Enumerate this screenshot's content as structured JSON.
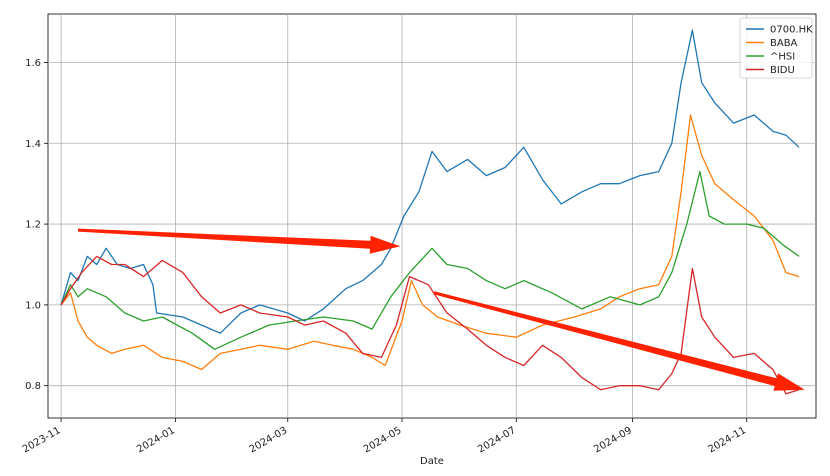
{
  "chart_data": {
    "type": "line",
    "xlabel": "Date",
    "ylabel": "",
    "x_range": [
      "2023-10-25",
      "2024-12-08"
    ],
    "ylim": [
      0.72,
      1.72
    ],
    "grid": true,
    "legend_position": "top-right",
    "x_ticks": [
      "2023-11",
      "2024-01",
      "2024-03",
      "2024-05",
      "2024-07",
      "2024-09",
      "2024-11"
    ],
    "y_ticks": [
      "0.8",
      "1.0",
      "1.2",
      "1.4",
      "1.6"
    ],
    "series": [
      {
        "name": "0700.HK",
        "color": "#1f77b4",
        "points": [
          [
            "2023-11-01",
            1.0
          ],
          [
            "2023-11-06",
            1.08
          ],
          [
            "2023-11-10",
            1.06
          ],
          [
            "2023-11-15",
            1.12
          ],
          [
            "2023-11-20",
            1.1
          ],
          [
            "2023-11-25",
            1.14
          ],
          [
            "2023-12-01",
            1.1
          ],
          [
            "2023-12-08",
            1.09
          ],
          [
            "2023-12-15",
            1.1
          ],
          [
            "2023-12-20",
            1.05
          ],
          [
            "2023-12-22",
            0.98
          ],
          [
            "2024-01-05",
            0.97
          ],
          [
            "2024-01-15",
            0.95
          ],
          [
            "2024-01-25",
            0.93
          ],
          [
            "2024-02-05",
            0.98
          ],
          [
            "2024-02-15",
            1.0
          ],
          [
            "2024-03-01",
            0.98
          ],
          [
            "2024-03-10",
            0.96
          ],
          [
            "2024-03-20",
            0.99
          ],
          [
            "2024-04-01",
            1.04
          ],
          [
            "2024-04-10",
            1.06
          ],
          [
            "2024-04-20",
            1.1
          ],
          [
            "2024-04-25",
            1.14
          ],
          [
            "2024-05-02",
            1.22
          ],
          [
            "2024-05-10",
            1.28
          ],
          [
            "2024-05-17",
            1.38
          ],
          [
            "2024-05-25",
            1.33
          ],
          [
            "2024-06-05",
            1.36
          ],
          [
            "2024-06-15",
            1.32
          ],
          [
            "2024-06-25",
            1.34
          ],
          [
            "2024-07-05",
            1.39
          ],
          [
            "2024-07-15",
            1.31
          ],
          [
            "2024-07-25",
            1.25
          ],
          [
            "2024-08-05",
            1.28
          ],
          [
            "2024-08-15",
            1.3
          ],
          [
            "2024-08-25",
            1.3
          ],
          [
            "2024-09-05",
            1.32
          ],
          [
            "2024-09-15",
            1.33
          ],
          [
            "2024-09-22",
            1.4
          ],
          [
            "2024-09-27",
            1.55
          ],
          [
            "2024-10-03",
            1.68
          ],
          [
            "2024-10-08",
            1.55
          ],
          [
            "2024-10-15",
            1.5
          ],
          [
            "2024-10-25",
            1.45
          ],
          [
            "2024-11-05",
            1.47
          ],
          [
            "2024-11-15",
            1.43
          ],
          [
            "2024-11-22",
            1.42
          ],
          [
            "2024-11-29",
            1.39
          ]
        ]
      },
      {
        "name": "BABA",
        "color": "#ff7f0e",
        "points": [
          [
            "2023-11-01",
            1.0
          ],
          [
            "2023-11-06",
            1.03
          ],
          [
            "2023-11-10",
            0.96
          ],
          [
            "2023-11-15",
            0.92
          ],
          [
            "2023-11-20",
            0.9
          ],
          [
            "2023-11-28",
            0.88
          ],
          [
            "2023-12-05",
            0.89
          ],
          [
            "2023-12-15",
            0.9
          ],
          [
            "2023-12-25",
            0.87
          ],
          [
            "2024-01-05",
            0.86
          ],
          [
            "2024-01-15",
            0.84
          ],
          [
            "2024-01-25",
            0.88
          ],
          [
            "2024-02-05",
            0.89
          ],
          [
            "2024-02-15",
            0.9
          ],
          [
            "2024-03-01",
            0.89
          ],
          [
            "2024-03-15",
            0.91
          ],
          [
            "2024-03-25",
            0.9
          ],
          [
            "2024-04-05",
            0.89
          ],
          [
            "2024-04-15",
            0.87
          ],
          [
            "2024-04-22",
            0.85
          ],
          [
            "2024-05-01",
            0.96
          ],
          [
            "2024-05-06",
            1.06
          ],
          [
            "2024-05-12",
            1.0
          ],
          [
            "2024-05-20",
            0.97
          ],
          [
            "2024-06-01",
            0.95
          ],
          [
            "2024-06-15",
            0.93
          ],
          [
            "2024-07-01",
            0.92
          ],
          [
            "2024-07-15",
            0.95
          ],
          [
            "2024-08-01",
            0.97
          ],
          [
            "2024-08-15",
            0.99
          ],
          [
            "2024-08-25",
            1.02
          ],
          [
            "2024-09-05",
            1.04
          ],
          [
            "2024-09-15",
            1.05
          ],
          [
            "2024-09-22",
            1.12
          ],
          [
            "2024-09-27",
            1.28
          ],
          [
            "2024-10-02",
            1.47
          ],
          [
            "2024-10-08",
            1.37
          ],
          [
            "2024-10-15",
            1.3
          ],
          [
            "2024-10-25",
            1.26
          ],
          [
            "2024-11-05",
            1.22
          ],
          [
            "2024-11-15",
            1.16
          ],
          [
            "2024-11-22",
            1.08
          ],
          [
            "2024-11-29",
            1.07
          ]
        ]
      },
      {
        "name": "^HSI",
        "color": "#2ca02c",
        "points": [
          [
            "2023-11-01",
            1.0
          ],
          [
            "2023-11-06",
            1.05
          ],
          [
            "2023-11-10",
            1.02
          ],
          [
            "2023-11-15",
            1.04
          ],
          [
            "2023-11-25",
            1.02
          ],
          [
            "2023-12-05",
            0.98
          ],
          [
            "2023-12-15",
            0.96
          ],
          [
            "2023-12-25",
            0.97
          ],
          [
            "2024-01-10",
            0.93
          ],
          [
            "2024-01-22",
            0.89
          ],
          [
            "2024-02-05",
            0.92
          ],
          [
            "2024-02-20",
            0.95
          ],
          [
            "2024-03-05",
            0.96
          ],
          [
            "2024-03-20",
            0.97
          ],
          [
            "2024-04-05",
            0.96
          ],
          [
            "2024-04-15",
            0.94
          ],
          [
            "2024-04-25",
            1.02
          ],
          [
            "2024-05-05",
            1.08
          ],
          [
            "2024-05-17",
            1.14
          ],
          [
            "2024-05-25",
            1.1
          ],
          [
            "2024-06-05",
            1.09
          ],
          [
            "2024-06-15",
            1.06
          ],
          [
            "2024-06-25",
            1.04
          ],
          [
            "2024-07-05",
            1.06
          ],
          [
            "2024-07-20",
            1.03
          ],
          [
            "2024-08-05",
            0.99
          ],
          [
            "2024-08-20",
            1.02
          ],
          [
            "2024-09-05",
            1.0
          ],
          [
            "2024-09-15",
            1.02
          ],
          [
            "2024-09-22",
            1.08
          ],
          [
            "2024-09-30",
            1.2
          ],
          [
            "2024-10-07",
            1.33
          ],
          [
            "2024-10-12",
            1.22
          ],
          [
            "2024-10-20",
            1.2
          ],
          [
            "2024-11-01",
            1.2
          ],
          [
            "2024-11-10",
            1.19
          ],
          [
            "2024-11-20",
            1.15
          ],
          [
            "2024-11-29",
            1.12
          ]
        ]
      },
      {
        "name": "BIDU",
        "color": "#d62728",
        "points": [
          [
            "2023-11-01",
            1.0
          ],
          [
            "2023-11-06",
            1.04
          ],
          [
            "2023-11-12",
            1.08
          ],
          [
            "2023-11-20",
            1.12
          ],
          [
            "2023-11-28",
            1.1
          ],
          [
            "2023-12-05",
            1.1
          ],
          [
            "2023-12-15",
            1.07
          ],
          [
            "2023-12-25",
            1.11
          ],
          [
            "2024-01-05",
            1.08
          ],
          [
            "2024-01-15",
            1.02
          ],
          [
            "2024-01-25",
            0.98
          ],
          [
            "2024-02-05",
            1.0
          ],
          [
            "2024-02-15",
            0.98
          ],
          [
            "2024-03-01",
            0.97
          ],
          [
            "2024-03-10",
            0.95
          ],
          [
            "2024-03-20",
            0.96
          ],
          [
            "2024-04-01",
            0.93
          ],
          [
            "2024-04-10",
            0.88
          ],
          [
            "2024-04-20",
            0.87
          ],
          [
            "2024-04-28",
            0.95
          ],
          [
            "2024-05-05",
            1.07
          ],
          [
            "2024-05-15",
            1.05
          ],
          [
            "2024-05-25",
            0.98
          ],
          [
            "2024-06-05",
            0.94
          ],
          [
            "2024-06-15",
            0.9
          ],
          [
            "2024-06-25",
            0.87
          ],
          [
            "2024-07-05",
            0.85
          ],
          [
            "2024-07-15",
            0.9
          ],
          [
            "2024-07-25",
            0.87
          ],
          [
            "2024-08-05",
            0.82
          ],
          [
            "2024-08-15",
            0.79
          ],
          [
            "2024-08-25",
            0.8
          ],
          [
            "2024-09-05",
            0.8
          ],
          [
            "2024-09-15",
            0.79
          ],
          [
            "2024-09-22",
            0.83
          ],
          [
            "2024-09-27",
            0.88
          ],
          [
            "2024-10-03",
            1.09
          ],
          [
            "2024-10-08",
            0.97
          ],
          [
            "2024-10-15",
            0.92
          ],
          [
            "2024-10-25",
            0.87
          ],
          [
            "2024-11-05",
            0.88
          ],
          [
            "2024-11-15",
            0.84
          ],
          [
            "2024-11-22",
            0.78
          ],
          [
            "2024-11-29",
            0.79
          ]
        ]
      }
    ],
    "annotations": [
      {
        "type": "arrow",
        "color": "#ff2200",
        "from": [
          "2023-11-10",
          1.185
        ],
        "to": [
          "2024-04-30",
          1.145
        ]
      },
      {
        "type": "arrow",
        "color": "#ff2200",
        "from": [
          "2024-05-18",
          1.03
        ],
        "to": [
          "2024-12-02",
          0.79
        ]
      }
    ]
  }
}
